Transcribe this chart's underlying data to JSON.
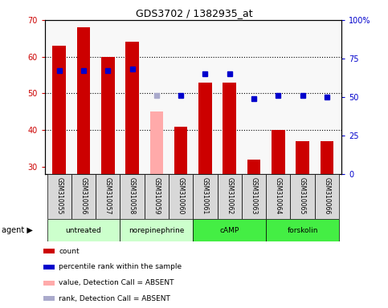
{
  "title": "GDS3702 / 1382935_at",
  "samples": [
    "GSM310055",
    "GSM310056",
    "GSM310057",
    "GSM310058",
    "GSM310059",
    "GSM310060",
    "GSM310061",
    "GSM310062",
    "GSM310063",
    "GSM310064",
    "GSM310065",
    "GSM310066"
  ],
  "counts": [
    63,
    68,
    60,
    64,
    45,
    41,
    53,
    53,
    32,
    40,
    37,
    37
  ],
  "count_absent": [
    false,
    false,
    false,
    false,
    true,
    false,
    false,
    false,
    false,
    false,
    false,
    false
  ],
  "ranks": [
    67,
    67,
    67,
    68,
    51,
    51,
    65,
    65,
    49,
    51,
    51,
    50
  ],
  "rank_absent": [
    false,
    false,
    false,
    false,
    true,
    false,
    false,
    false,
    false,
    false,
    false,
    false
  ],
  "ylim_left": [
    28,
    70
  ],
  "ylim_right": [
    0,
    100
  ],
  "yticks_left": [
    30,
    40,
    50,
    60,
    70
  ],
  "yticks_right": [
    0,
    25,
    50,
    75,
    100
  ],
  "ytick_labels_right": [
    "0",
    "25",
    "50",
    "75",
    "100%"
  ],
  "bar_color_present": "#cc0000",
  "bar_color_absent": "#ffaaaa",
  "rank_color_present": "#0000cc",
  "rank_color_absent": "#aaaacc",
  "background_color": "#ffffff",
  "plot_bg_color": "#f8f8f8",
  "sample_box_color": "#d8d8d8",
  "groups": [
    {
      "label": "untreated",
      "start": 0,
      "end": 2,
      "color": "#ccffcc"
    },
    {
      "label": "norepinephrine",
      "start": 3,
      "end": 5,
      "color": "#ccffcc"
    },
    {
      "label": "cAMP",
      "start": 6,
      "end": 8,
      "color": "#44ee44"
    },
    {
      "label": "forskolin",
      "start": 9,
      "end": 11,
      "color": "#44ee44"
    }
  ],
  "bar_width": 0.55,
  "legend_items": [
    {
      "label": "count",
      "color": "#cc0000"
    },
    {
      "label": "percentile rank within the sample",
      "color": "#0000cc"
    },
    {
      "label": "value, Detection Call = ABSENT",
      "color": "#ffaaaa"
    },
    {
      "label": "rank, Detection Call = ABSENT",
      "color": "#aaaacc"
    }
  ]
}
